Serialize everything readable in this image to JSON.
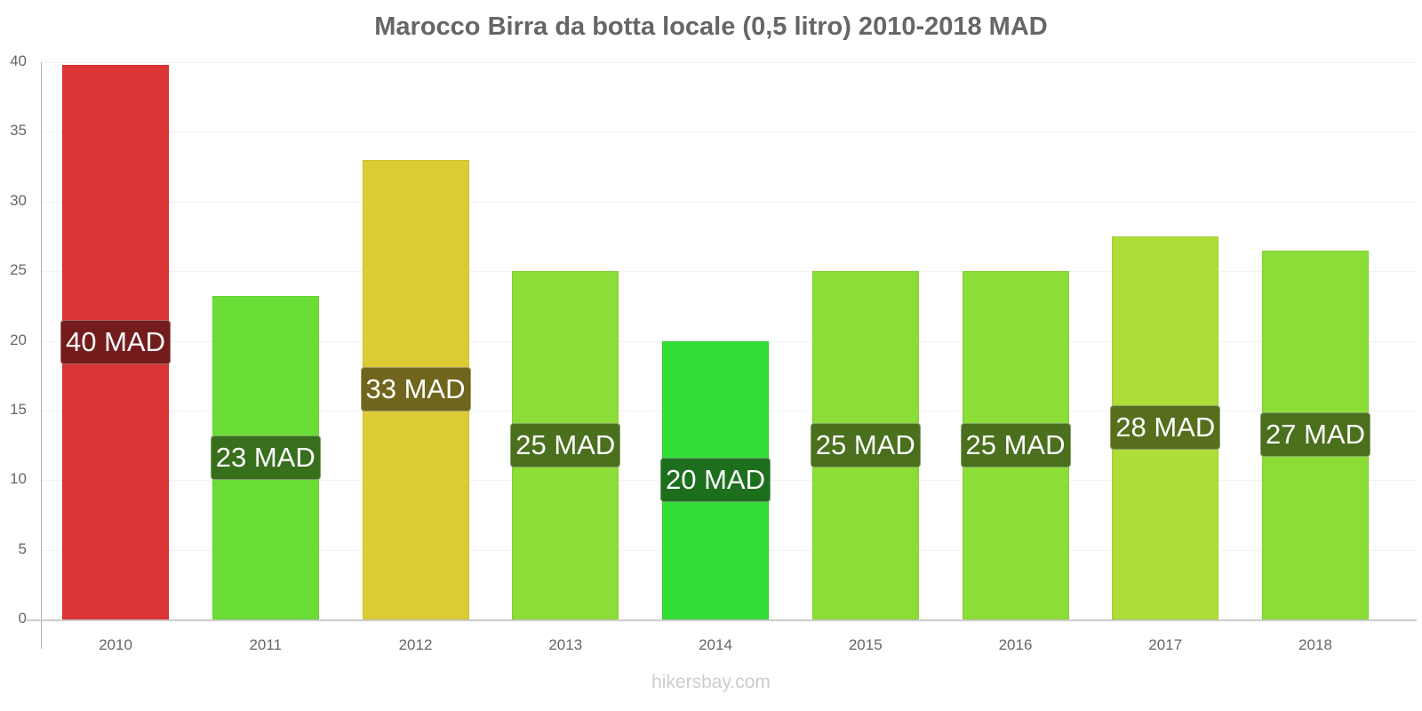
{
  "chart_data": {
    "type": "bar",
    "title": "Marocco Birra da botta locale (0,5 litro) 2010-2018 MAD",
    "xlabel": "",
    "ylabel": "",
    "ylim": [
      0,
      40
    ],
    "yticks": [
      0,
      5,
      10,
      15,
      20,
      25,
      30,
      35,
      40
    ],
    "grid": true,
    "legend": null,
    "categories": [
      "2010",
      "2011",
      "2012",
      "2013",
      "2014",
      "2015",
      "2016",
      "2017",
      "2018"
    ],
    "values": [
      39.8,
      23.2,
      33,
      25,
      20,
      25,
      25,
      27.5,
      26.5
    ],
    "data_labels": [
      "40 MAD",
      "23 MAD",
      "33 MAD",
      "25 MAD",
      "20 MAD",
      "25 MAD",
      "25 MAD",
      "28 MAD",
      "27 MAD"
    ],
    "bar_colors": [
      "#dc3535",
      "#6bdd37",
      "#dccb35",
      "#8bdd37",
      "#35dd37",
      "#8bdd37",
      "#8bdd37",
      "#addd37",
      "#8bdd37"
    ],
    "label_colors": [
      "#741c1c",
      "#386f1d",
      "#6f651c",
      "#4a6f1d",
      "#1d6f1e",
      "#4a6f1d",
      "#4a6f1d",
      "#576f1d",
      "#4a6f1d"
    ]
  },
  "watermark": "hikersbay.com"
}
